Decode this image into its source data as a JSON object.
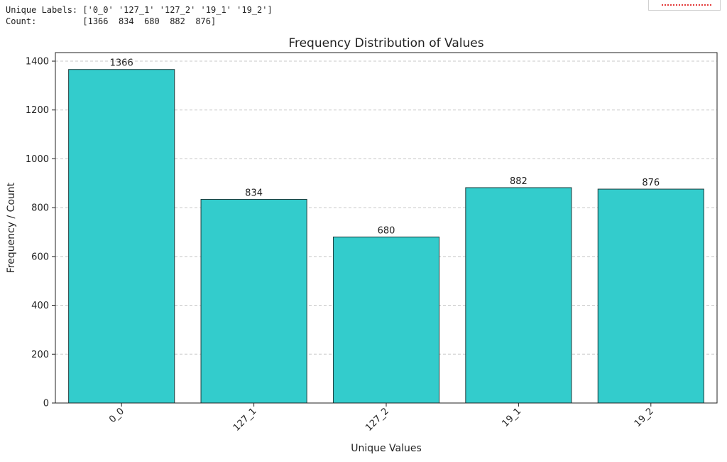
{
  "output": {
    "labels_prefix": "Unique Labels: ",
    "labels_text": "['0_0' '127_1' '127_2' '19_1' '19_2']",
    "count_prefix": "Count:         ",
    "count_text": "[1366  834  680  882  876]"
  },
  "colors": {
    "bar_fill": "#33cccc",
    "bar_edge": "#1f3a3a",
    "grid": "#c8c8c8",
    "axis": "#222222"
  },
  "chart_data": {
    "type": "bar",
    "title": "Frequency Distribution of Values",
    "xlabel": "Unique Values",
    "ylabel": "Frequency / Count",
    "categories": [
      "0_0",
      "127_1",
      "127_2",
      "19_1",
      "19_2"
    ],
    "values": [
      1366,
      834,
      680,
      882,
      876
    ],
    "ylim": [
      0,
      1435
    ],
    "yticks": [
      0,
      200,
      400,
      600,
      800,
      1000,
      1200,
      1400
    ],
    "grid": "y-dashed",
    "xtick_rotation": 45
  }
}
